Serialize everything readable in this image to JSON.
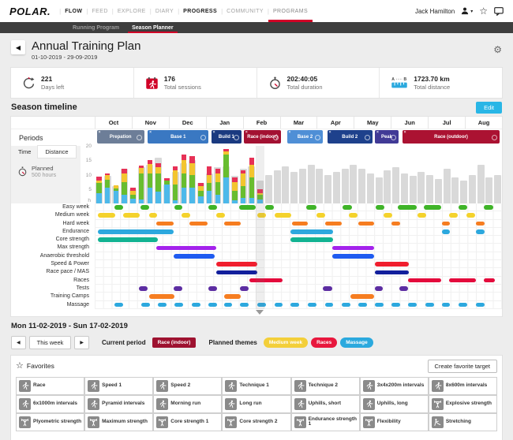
{
  "nav": {
    "logo": "POLAR.",
    "user_name": "Jack Hamilton",
    "items": [
      {
        "label": "FLOW",
        "strong": true
      },
      {
        "label": "FEED"
      },
      {
        "label": "EXPLORE"
      },
      {
        "label": "DIARY"
      },
      {
        "label": "PROGRESS",
        "strong": true
      },
      {
        "label": "COMMUNITY"
      },
      {
        "label": "PROGRAMS",
        "selected": true
      }
    ]
  },
  "subnav": {
    "items": [
      {
        "label": "Running Program"
      },
      {
        "label": "Season Planner",
        "selected": true
      }
    ]
  },
  "header": {
    "title": "Annual Training Plan",
    "date_range": "01-10-2019 - 29-09-2019"
  },
  "stats": [
    {
      "value": "221",
      "label": "Days left",
      "icon": "days-left-icon"
    },
    {
      "value": "176",
      "label": "Total sessions",
      "icon": "calendar-runner-icon"
    },
    {
      "value": "202:40:05",
      "label": "Total duration",
      "icon": "stopwatch-icon"
    },
    {
      "value": "1723.70 km",
      "label": "Total distance",
      "icon": "distance-icon"
    }
  ],
  "season": {
    "title": "Season timeline",
    "edit_label": "Edit",
    "periods_label": "Periods",
    "tabs": {
      "time": "Time",
      "distance": "Distance"
    },
    "selected_tab": "Time",
    "planned_label": "Planned",
    "planned_value": "500 hours",
    "periods": [
      {
        "label": "Prepation",
        "color": "#6d7e98",
        "start": 0.5,
        "width": 11.7
      },
      {
        "label": "Base 1",
        "color": "#3a78c2",
        "start": 13.0,
        "width": 15.0
      },
      {
        "label": "Build 1",
        "color": "#1a3a80",
        "start": 28.6,
        "width": 7.5
      },
      {
        "label": "Race (indoor)",
        "color": "#a31132",
        "start": 36.6,
        "width": 9.2
      },
      {
        "label": "Base 2",
        "color": "#4f8fd6",
        "start": 47.2,
        "width": 8.9
      },
      {
        "label": "Build 2",
        "color": "#1e418c",
        "start": 57.1,
        "width": 11.1
      },
      {
        "label": "Peak",
        "color": "#413a96",
        "start": 68.8,
        "width": 5.8
      },
      {
        "label": "Race (outdoor)",
        "color": "#ab1232",
        "start": 75.5,
        "width": 24.0
      }
    ]
  },
  "chart_data": {
    "type": "bar",
    "stacked": true,
    "title": "Season timeline weekly hours",
    "unit_label": "h",
    "yticks": [
      20,
      15,
      10,
      5
    ],
    "ylim": [
      0,
      20
    ],
    "months": [
      "Oct",
      "Nov",
      "Dec",
      "Jan",
      "Feb",
      "Mar",
      "Apr",
      "May",
      "Jun",
      "Jul",
      "Aug"
    ],
    "total_weeks": 48,
    "current_week_index": 19,
    "planned_color": "#d9d9d9",
    "segment_names": [
      "easy",
      "moderate",
      "demanding",
      "maximum"
    ],
    "segment_colors": [
      "#4db9ea",
      "#68bd2f",
      "#f3c52f",
      "#e73156"
    ],
    "weeks": [
      {
        "planned": 7.5,
        "actual": [
          3.5,
          3.5,
          1.0,
          1.3
        ]
      },
      {
        "planned": 9.5,
        "actual": [
          5.5,
          2.8,
          1.5,
          0.7
        ]
      },
      {
        "planned": 6.0,
        "actual": [
          4.5,
          0.8,
          1.0,
          0
        ]
      },
      {
        "planned": 12.0,
        "actual": [
          3.0,
          4.5,
          3.0,
          1.5
        ]
      },
      {
        "planned": 5.0,
        "actual": [
          1.7,
          1.3,
          1.5,
          1.0
        ]
      },
      {
        "planned": 12.5,
        "actual": [
          1.3,
          9.0,
          2.0,
          0.8
        ]
      },
      {
        "planned": 13.5,
        "actual": [
          5.5,
          5.0,
          3.3,
          1.4
        ]
      },
      {
        "planned": 16.0,
        "actual": [
          4.0,
          6.3,
          2.2,
          1.5
        ]
      },
      {
        "planned": 6.5,
        "actual": [
          6.5,
          1.5,
          0,
          0.8
        ]
      },
      {
        "planned": 11.0,
        "actual": [
          1.0,
          5.5,
          5.0,
          1.5
        ]
      },
      {
        "planned": 14.0,
        "actual": [
          5.5,
          5.0,
          4.5,
          2.0
        ]
      },
      {
        "planned": 15.0,
        "actual": [
          5.5,
          4.5,
          4.0,
          2.5
        ]
      },
      {
        "planned": 7.0,
        "actual": [
          2.5,
          2.0,
          1.5,
          1.0
        ]
      },
      {
        "planned": 10.5,
        "actual": [
          4.5,
          2.5,
          3.0,
          3.0
        ]
      },
      {
        "planned": 12.5,
        "actual": [
          3.0,
          4.5,
          3.0,
          1.5
        ]
      },
      {
        "planned": 13.0,
        "actual": [
          9.0,
          8.0,
          1.0,
          1.0
        ]
      },
      {
        "planned": 9.5,
        "actual": [
          1.0,
          3.5,
          3.0,
          1.5
        ]
      },
      {
        "planned": 12.0,
        "actual": [
          2.0,
          4.0,
          4.5,
          1.0
        ]
      },
      {
        "planned": 13.0,
        "actual": [
          2.0,
          7.0,
          4.5,
          2.5
        ]
      },
      {
        "planned": 8.0,
        "actual": [
          1.5,
          1.5,
          0.5,
          1.5
        ]
      },
      {
        "planned": 10.0
      },
      {
        "planned": 11.5
      },
      {
        "planned": 13.0
      },
      {
        "planned": 11.0
      },
      {
        "planned": 12.0
      },
      {
        "planned": 13.5
      },
      {
        "planned": 12.0
      },
      {
        "planned": 10.0
      },
      {
        "planned": 11.0
      },
      {
        "planned": 12.0
      },
      {
        "planned": 13.5
      },
      {
        "planned": 12.0
      },
      {
        "planned": 10.5
      },
      {
        "planned": 9.0
      },
      {
        "planned": 11.5
      },
      {
        "planned": 12.5
      },
      {
        "planned": 10.5
      },
      {
        "planned": 9.5
      },
      {
        "planned": 11.0
      },
      {
        "planned": 10.0
      },
      {
        "planned": 8.5
      },
      {
        "planned": 12.0
      },
      {
        "planned": 9.0
      },
      {
        "planned": 8.0
      },
      {
        "planned": 10.0
      },
      {
        "planned": 13.5
      },
      {
        "planned": 9.0
      },
      {
        "planned": 10.0
      }
    ]
  },
  "gantt": {
    "rows": [
      {
        "label": "Easy week",
        "color": "#3fb428",
        "bars": [
          [
            4.9,
            2.1
          ],
          [
            11.2,
            2.1
          ],
          [
            19.5,
            2.1
          ],
          [
            27.9,
            2.1
          ],
          [
            35.4,
            4.2
          ],
          [
            41.9,
            2.1
          ],
          [
            52,
            2.4
          ],
          [
            60.8,
            2.4
          ],
          [
            69,
            2.1
          ],
          [
            74.5,
            4.5
          ],
          [
            80.9,
            4.2
          ],
          [
            89.4,
            2.1
          ],
          [
            95.6,
            2.2
          ]
        ]
      },
      {
        "label": "Medium week",
        "color": "#f4d22c",
        "bars": [
          [
            0.8,
            4.2
          ],
          [
            6.9,
            4.2
          ],
          [
            13.3,
            2.1
          ],
          [
            21.4,
            2.1
          ],
          [
            29.8,
            2.1
          ],
          [
            39.9,
            2.1
          ],
          [
            44.1,
            4.2
          ],
          [
            54.4,
            2.1
          ],
          [
            62.4,
            2.1
          ],
          [
            70.9,
            2.1
          ],
          [
            79.3,
            2.1
          ],
          [
            87.1,
            2.1
          ],
          [
            91.3,
            2.1
          ]
        ]
      },
      {
        "label": "Hard week",
        "color": "#f67d20",
        "bars": [
          [
            15.2,
            4.2
          ],
          [
            23.3,
            4.5
          ],
          [
            31.7,
            4.1
          ],
          [
            48.5,
            3.9
          ],
          [
            56.5,
            4.1
          ],
          [
            64.7,
            3.9
          ],
          [
            72.9,
            2.1
          ],
          [
            85.2,
            2.1
          ],
          [
            93.6,
            2.1
          ]
        ]
      },
      {
        "label": "Endurance",
        "color": "#2ca8de",
        "bars": [
          [
            0.8,
            18.6
          ],
          [
            48.1,
            10.4
          ],
          [
            85.2,
            2.1
          ],
          [
            93.6,
            2.1
          ]
        ]
      },
      {
        "label": "Core strength",
        "color": "#12b392",
        "bars": [
          [
            0.8,
            14.8
          ],
          [
            48.1,
            10.4
          ]
        ]
      },
      {
        "label": "Max strength",
        "color": "#a422ec",
        "bars": [
          [
            15.2,
            14.7
          ],
          [
            58.4,
            10.2
          ]
        ]
      },
      {
        "label": "Anaerobic threshold",
        "color": "#1e5bf0",
        "bars": [
          [
            19.4,
            10.1
          ],
          [
            58.4,
            10.2
          ]
        ]
      },
      {
        "label": "Speed & Power",
        "color": "#f01e2e",
        "bars": [
          [
            29.8,
            10.2
          ],
          [
            68.8,
            8.3
          ]
        ]
      },
      {
        "label": "Race pace / MAS",
        "color": "#121f9c",
        "bars": [
          [
            29.8,
            10.2
          ],
          [
            68.8,
            8.3
          ]
        ]
      },
      {
        "label": "Races",
        "color": "#e40b3c",
        "bars": [
          [
            37.9,
            8.3
          ],
          [
            77,
            8.1
          ],
          [
            87.1,
            6.6
          ],
          [
            95.6,
            2.6
          ]
        ]
      },
      {
        "label": "Tests",
        "color": "#5c2da2",
        "bars": [
          [
            10.9,
            2.1
          ],
          [
            19.4,
            2.1
          ],
          [
            27.9,
            2.1
          ],
          [
            35.7,
            2.1
          ],
          [
            56.1,
            2.3
          ],
          [
            68.8,
            2
          ],
          [
            74.9,
            2.1
          ]
        ]
      },
      {
        "label": "Training Camps",
        "color": "#f67d20",
        "bars": [
          [
            13.3,
            6.2
          ],
          [
            31.7,
            4.1
          ],
          [
            62.8,
            5.8
          ]
        ]
      },
      {
        "label": "Massage",
        "color": "#2ca8de",
        "bars": [
          [
            4.9,
            2.1
          ],
          [
            11.4,
            2.1
          ],
          [
            15.6,
            2.1
          ],
          [
            19.6,
            2.1
          ],
          [
            23.8,
            2.1
          ],
          [
            27.9,
            2.1
          ],
          [
            31.7,
            2.1
          ],
          [
            35.7,
            2.1
          ],
          [
            39.9,
            2.1
          ],
          [
            44.1,
            2.1
          ],
          [
            48.1,
            2.1
          ],
          [
            52.3,
            2.1
          ],
          [
            56.5,
            2.1
          ],
          [
            60.6,
            2.1
          ],
          [
            64.7,
            2.1
          ],
          [
            68.8,
            2.1
          ],
          [
            72.9,
            2.1
          ],
          [
            77,
            2.1
          ],
          [
            81.2,
            2.1
          ],
          [
            85.2,
            2.1
          ],
          [
            89.4,
            2.1
          ],
          [
            93.6,
            2.1
          ]
        ]
      }
    ]
  },
  "week_detail": {
    "title": "Mon 11-02-2019 - Sun 17-02-2019",
    "this_week_label": "This week",
    "prev_label": "◀",
    "next_label": "▶",
    "current_period_label": "Current period",
    "current_period": {
      "label": "Race (indoor)",
      "color": "#9e1230"
    },
    "planned_themes_label": "Planned themes",
    "themes": [
      {
        "label": "Medium week",
        "color": "#f3cf3a"
      },
      {
        "label": "Races",
        "color": "#e8173d"
      },
      {
        "label": "Massage",
        "color": "#2ba9de"
      }
    ]
  },
  "favorites": {
    "title": "Favorites",
    "create_label": "Create favorite target",
    "items": [
      {
        "label": "Race",
        "icon": "runner-icon"
      },
      {
        "label": "Speed 1",
        "icon": "runner-icon"
      },
      {
        "label": "Speed 2",
        "icon": "runner-icon"
      },
      {
        "label": "Technique 1",
        "icon": "runner-icon"
      },
      {
        "label": "Technique 2",
        "icon": "runner-icon"
      },
      {
        "label": "3x4x200m intervals",
        "icon": "runner-icon"
      },
      {
        "label": "8x600m intervals",
        "icon": "runner-icon"
      },
      {
        "label": "6x1000m intervals",
        "icon": "runner-icon"
      },
      {
        "label": "Pyramid intervals",
        "icon": "runner-icon"
      },
      {
        "label": "Morning run",
        "icon": "runner-icon"
      },
      {
        "label": "Long run",
        "icon": "runner-icon"
      },
      {
        "label": "Uphills, short",
        "icon": "runner-icon"
      },
      {
        "label": "Uphills, long",
        "icon": "runner-icon"
      },
      {
        "label": "Explosive strength",
        "icon": "strength-icon"
      },
      {
        "label": "Plyometric strength",
        "icon": "strength-icon"
      },
      {
        "label": "Maximum strength",
        "icon": "strength-icon"
      },
      {
        "label": "Core strength 1",
        "icon": "strength-icon"
      },
      {
        "label": "Core strength 2",
        "icon": "strength-icon"
      },
      {
        "label": "Endurance strength 1",
        "icon": "strength-icon"
      },
      {
        "label": "Flexibility",
        "icon": "strength-icon"
      },
      {
        "label": "Stretching",
        "icon": "stretching-icon"
      }
    ]
  }
}
